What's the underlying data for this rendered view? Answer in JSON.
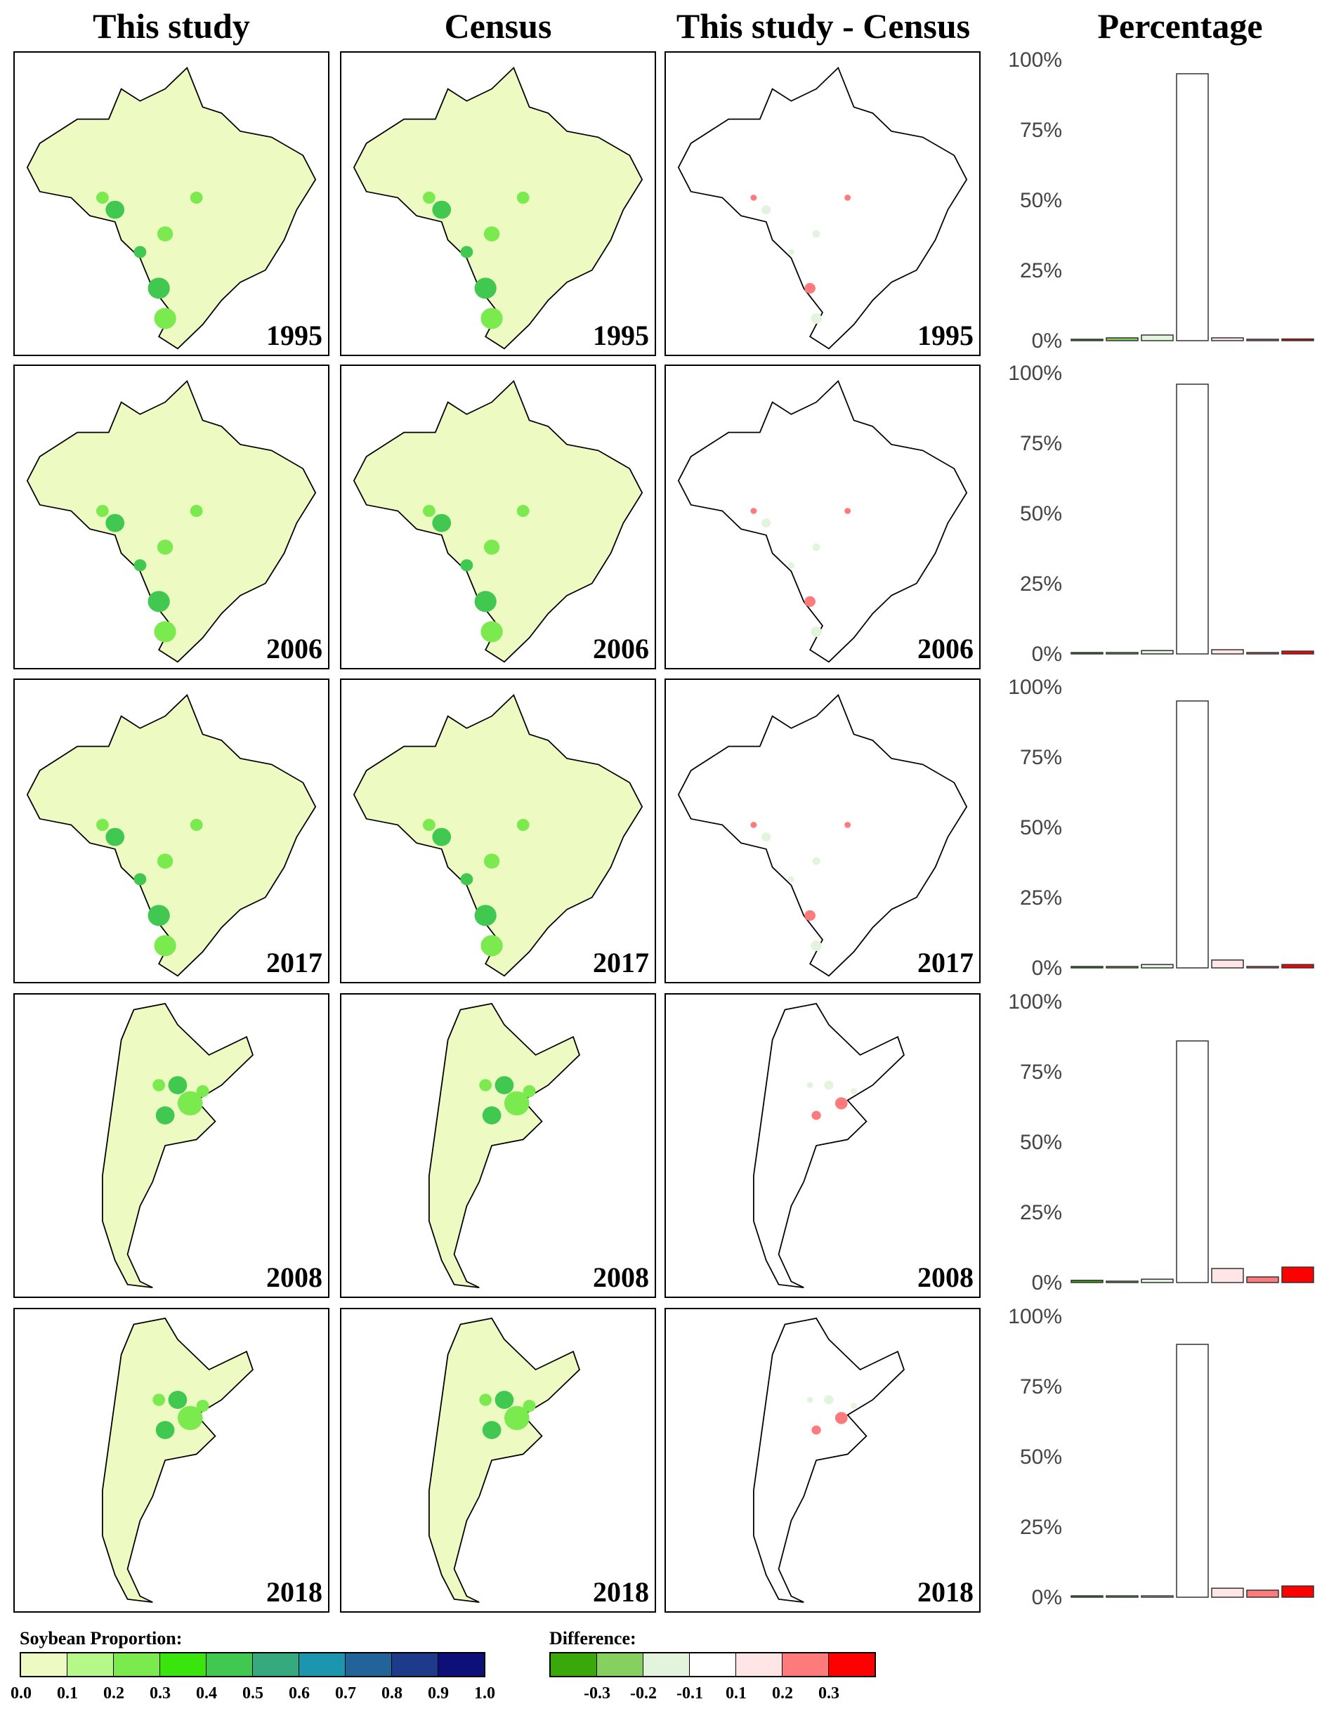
{
  "headers": [
    "This study",
    "Census",
    "This study - Census",
    "Percentage"
  ],
  "rows": [
    {
      "year": "1995",
      "country": "brazil"
    },
    {
      "year": "2006",
      "country": "brazil"
    },
    {
      "year": "2017",
      "country": "brazil"
    },
    {
      "year": "2008",
      "country": "argentina"
    },
    {
      "year": "2018",
      "country": "argentina"
    }
  ],
  "colors": {
    "base_fill": "#edfbc3",
    "diff_fill": "#ffffff",
    "outline": "#000000"
  },
  "chart_data": [
    {
      "type": "bar",
      "title": "Percentage",
      "year": "1995",
      "categories": [
        "<-0.3",
        "-0.3~-0.2",
        "-0.2~-0.1",
        "-0.1~0.1",
        "0.1~0.2",
        "0.2~0.3",
        ">0.3"
      ],
      "values": [
        0.3,
        1.0,
        2.0,
        95,
        1.0,
        0.3,
        0.6
      ],
      "ylim": [
        0,
        100
      ],
      "yticks": [
        "0%",
        "25%",
        "50%",
        "75%",
        "100%"
      ]
    },
    {
      "type": "bar",
      "title": "Percentage",
      "year": "2006",
      "categories": [
        "<-0.3",
        "-0.3~-0.2",
        "-0.2~-0.1",
        "-0.1~0.1",
        "0.1~0.2",
        "0.2~0.3",
        ">0.3"
      ],
      "values": [
        0.3,
        0.3,
        1.2,
        96,
        1.5,
        0.5,
        1.0
      ],
      "ylim": [
        0,
        100
      ],
      "yticks": [
        "0%",
        "25%",
        "50%",
        "75%",
        "100%"
      ]
    },
    {
      "type": "bar",
      "title": "Percentage",
      "year": "2017",
      "categories": [
        "<-0.3",
        "-0.3~-0.2",
        "-0.2~-0.1",
        "-0.1~0.1",
        "0.1~0.2",
        "0.2~0.3",
        ">0.3"
      ],
      "values": [
        0.3,
        0.3,
        1.2,
        95,
        2.8,
        0.5,
        1.2
      ],
      "ylim": [
        0,
        100
      ],
      "yticks": [
        "0%",
        "25%",
        "50%",
        "75%",
        "100%"
      ]
    },
    {
      "type": "bar",
      "title": "Percentage",
      "year": "2008",
      "categories": [
        "<-0.3",
        "-0.3~-0.2",
        "-0.2~-0.1",
        "-0.1~0.1",
        "0.1~0.2",
        "0.2~0.3",
        ">0.3"
      ],
      "values": [
        0.8,
        0.5,
        1.2,
        86,
        5.0,
        2.0,
        5.5
      ],
      "ylim": [
        0,
        100
      ],
      "yticks": [
        "0%",
        "25%",
        "50%",
        "75%",
        "100%"
      ]
    },
    {
      "type": "bar",
      "title": "Percentage",
      "year": "2018",
      "categories": [
        "<-0.3",
        "-0.3~-0.2",
        "-0.2~-0.1",
        "-0.1~0.1",
        "0.1~0.2",
        "0.2~0.3",
        ">0.3"
      ],
      "values": [
        0.3,
        0.2,
        0.3,
        90,
        3.2,
        2.5,
        4.0
      ],
      "ylim": [
        0,
        100
      ],
      "yticks": [
        "0%",
        "25%",
        "50%",
        "75%",
        "100%"
      ]
    }
  ],
  "bar_colors": [
    "#3aa80a",
    "#85d05e",
    "#e2f5dc",
    "#ffffff",
    "#ffe5e5",
    "#ff7a7a",
    "#ff0000"
  ],
  "legend_proportion": {
    "title": "Soybean Proportion:",
    "colors": [
      "#edfbc3",
      "#b6f78a",
      "#7aea4e",
      "#3ae40d",
      "#40c850",
      "#36a97e",
      "#1b96ae",
      "#22649a",
      "#1e3a8a",
      "#0c1078"
    ],
    "labels": [
      "0.0",
      "0.1",
      "0.2",
      "0.3",
      "0.4",
      "0.5",
      "0.6",
      "0.7",
      "0.8",
      "0.9",
      "1.0"
    ]
  },
  "legend_difference": {
    "title": "Difference:",
    "colors": [
      "#3aa80a",
      "#85d05e",
      "#e2f5dc",
      "#ffffff",
      "#ffe5e5",
      "#ff7a7a",
      "#ff0000"
    ],
    "labels": [
      "-0.3",
      "-0.2",
      "-0.1",
      "0.1",
      "0.2",
      "0.3"
    ]
  }
}
